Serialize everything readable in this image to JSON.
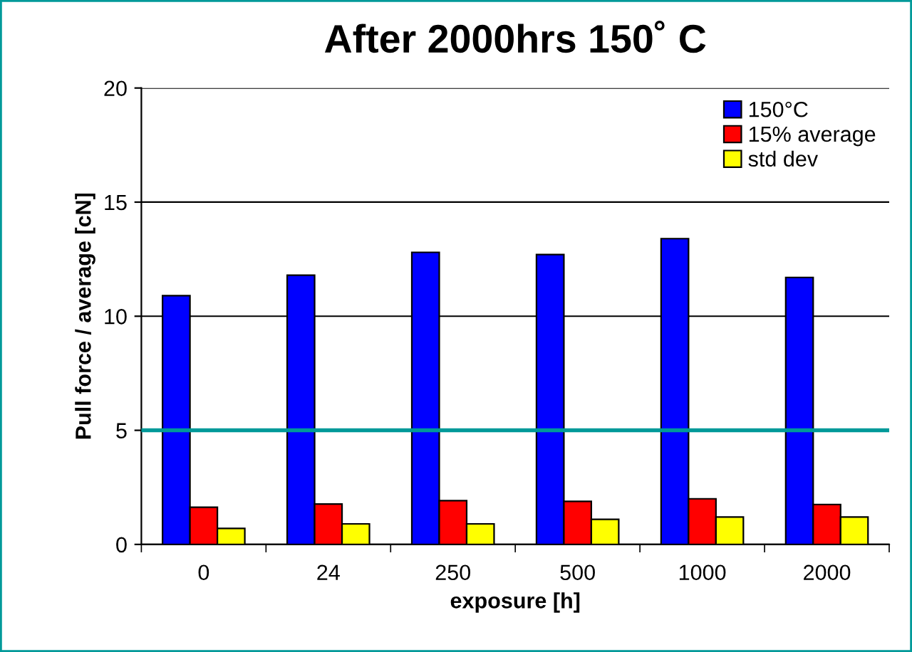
{
  "chart_data": {
    "type": "bar",
    "title": "After 2000hrs 150˚ C",
    "xlabel": "exposure [h]",
    "ylabel": "Pull force / average [cN]",
    "categories": [
      "0",
      "24",
      "250",
      "500",
      "1000",
      "2000"
    ],
    "series": [
      {
        "name": "150°C",
        "color": "#0000ff",
        "values": [
          10.9,
          11.8,
          12.8,
          12.7,
          13.4,
          11.7
        ]
      },
      {
        "name": "15% average",
        "color": "#ff0000",
        "values": [
          1.63,
          1.77,
          1.92,
          1.89,
          2.0,
          1.75
        ]
      },
      {
        "name": "std dev",
        "color": "#ffff00",
        "values": [
          0.7,
          0.9,
          0.9,
          1.1,
          1.2,
          1.2
        ]
      }
    ],
    "ylim": [
      0,
      20
    ],
    "yticks": [
      0,
      5,
      10,
      15,
      20
    ],
    "grid": "y",
    "legend": "top right",
    "ref_lines": [
      {
        "axis": "y",
        "value": 5,
        "color": "#009999"
      }
    ]
  }
}
